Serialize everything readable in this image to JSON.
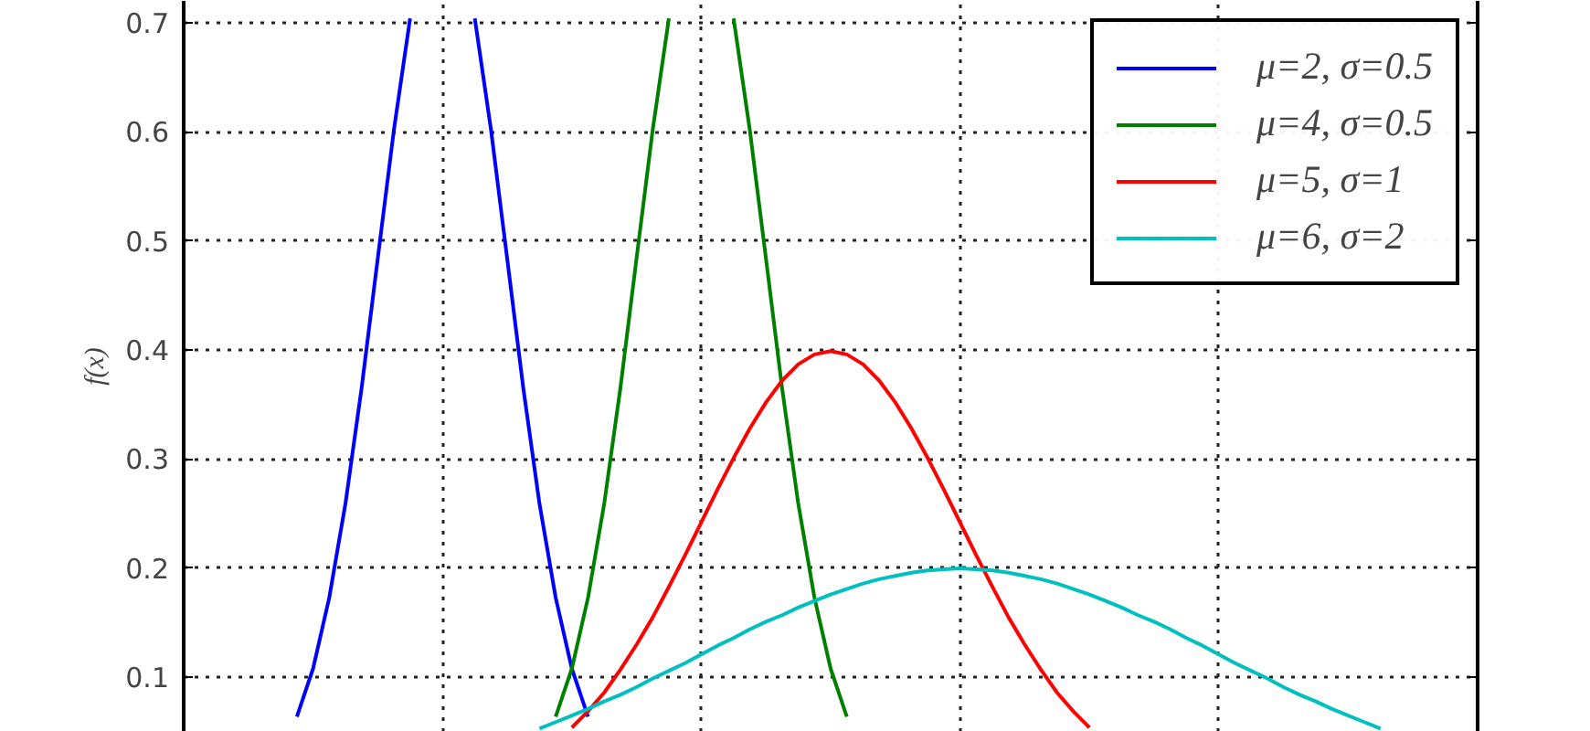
{
  "chart_data": {
    "type": "line",
    "ylabel": "f(x)",
    "categories": [
      null,
      null,
      null,
      null,
      null,
      null,
      null,
      null,
      null,
      null,
      null,
      null,
      null,
      null,
      null,
      null,
      null,
      null,
      null,
      null,
      null,
      null,
      null,
      null,
      null,
      null,
      null,
      null,
      null,
      null,
      null,
      null,
      null,
      null,
      null,
      null,
      null,
      null,
      null,
      null,
      null,
      null,
      null,
      null,
      null,
      null,
      null,
      null,
      null,
      null,
      null,
      null,
      null,
      null,
      null,
      null,
      null,
      null,
      null,
      null,
      null,
      null,
      null,
      null,
      null,
      null,
      null,
      null,
      null,
      null,
      null,
      null,
      null,
      null,
      null,
      null,
      null,
      null,
      null,
      null,
      null
    ],
    "ylim": [
      0.05,
      0.72
    ],
    "yticks": [
      0.1,
      0.2,
      0.3,
      0.4,
      0.5,
      0.6,
      0.7
    ],
    "tick_labels": "y",
    "grid": true,
    "legend": "top right",
    "line_style": "solid",
    "series": [
      {
        "name": "μ=2, σ=0.5",
        "color": "#0000ff",
        "values": [
          null,
          null,
          null,
          null,
          null,
          null,
          null,
          0.064,
          0.108,
          0.173,
          0.259,
          0.365,
          0.484,
          0.602,
          0.704,
          null,
          null,
          null,
          0.704,
          0.602,
          0.484,
          0.365,
          0.259,
          0.173,
          0.108,
          0.064,
          null,
          null,
          null,
          null,
          null,
          null,
          null,
          null,
          null,
          null,
          null,
          null,
          null,
          null,
          null,
          null,
          null,
          null,
          null,
          null,
          null,
          null,
          null,
          null,
          null,
          null,
          null,
          null,
          null,
          null,
          null,
          null,
          null,
          null,
          null,
          null,
          null,
          null,
          null,
          null,
          null,
          null,
          null,
          null,
          null,
          null,
          null,
          null,
          null,
          null,
          null,
          null,
          null,
          null,
          null
        ]
      },
      {
        "name": "μ=4, σ=0.5",
        "color": "#008000",
        "values": [
          null,
          null,
          null,
          null,
          null,
          null,
          null,
          null,
          null,
          null,
          null,
          null,
          null,
          null,
          null,
          null,
          null,
          null,
          null,
          null,
          null,
          null,
          null,
          0.064,
          0.108,
          0.173,
          0.259,
          0.365,
          0.484,
          0.602,
          0.704,
          null,
          null,
          null,
          0.704,
          0.602,
          0.484,
          0.365,
          0.259,
          0.173,
          0.108,
          0.064,
          null,
          null,
          null,
          null,
          null,
          null,
          null,
          null,
          null,
          null,
          null,
          null,
          null,
          null,
          null,
          null,
          null,
          null,
          null,
          null,
          null,
          null,
          null,
          null,
          null,
          null,
          null,
          null,
          null,
          null,
          null,
          null,
          null,
          null,
          null,
          null,
          null,
          null,
          null
        ]
      },
      {
        "name": "μ=5, σ=1",
        "color": "#ff0000",
        "values": [
          null,
          null,
          null,
          null,
          null,
          null,
          null,
          null,
          null,
          null,
          null,
          null,
          null,
          null,
          null,
          null,
          null,
          null,
          null,
          null,
          null,
          null,
          null,
          null,
          0.054,
          0.069,
          0.086,
          0.107,
          0.13,
          0.155,
          0.183,
          0.212,
          0.242,
          0.272,
          0.301,
          0.328,
          0.352,
          0.372,
          0.387,
          0.396,
          0.399,
          0.396,
          0.387,
          0.372,
          0.352,
          0.328,
          0.301,
          0.272,
          0.242,
          0.212,
          0.183,
          0.155,
          0.13,
          0.107,
          0.086,
          0.069,
          0.054,
          null,
          null,
          null,
          null,
          null,
          null,
          null,
          null,
          null,
          null,
          null,
          null,
          null,
          null,
          null,
          null,
          null,
          null,
          null,
          null,
          null,
          null,
          null,
          null
        ]
      },
      {
        "name": "μ=6, σ=2",
        "color": "#00bfbf",
        "values": [
          null,
          null,
          null,
          null,
          null,
          null,
          null,
          null,
          null,
          null,
          null,
          null,
          null,
          null,
          null,
          null,
          null,
          null,
          null,
          null,
          null,
          null,
          0.053,
          0.059,
          0.065,
          0.071,
          0.078,
          0.084,
          0.091,
          0.099,
          0.106,
          0.113,
          0.121,
          0.129,
          0.136,
          0.144,
          0.151,
          0.157,
          0.164,
          0.17,
          0.176,
          0.181,
          0.186,
          0.19,
          0.193,
          0.196,
          0.198,
          0.199,
          0.2,
          0.199,
          0.198,
          0.196,
          0.193,
          0.19,
          0.186,
          0.181,
          0.176,
          0.17,
          0.164,
          0.157,
          0.151,
          0.144,
          0.136,
          0.129,
          0.121,
          0.113,
          0.106,
          0.099,
          0.091,
          0.084,
          0.078,
          0.071,
          0.065,
          0.059,
          0.053,
          null,
          null,
          null,
          null,
          null,
          null
        ]
      }
    ]
  }
}
